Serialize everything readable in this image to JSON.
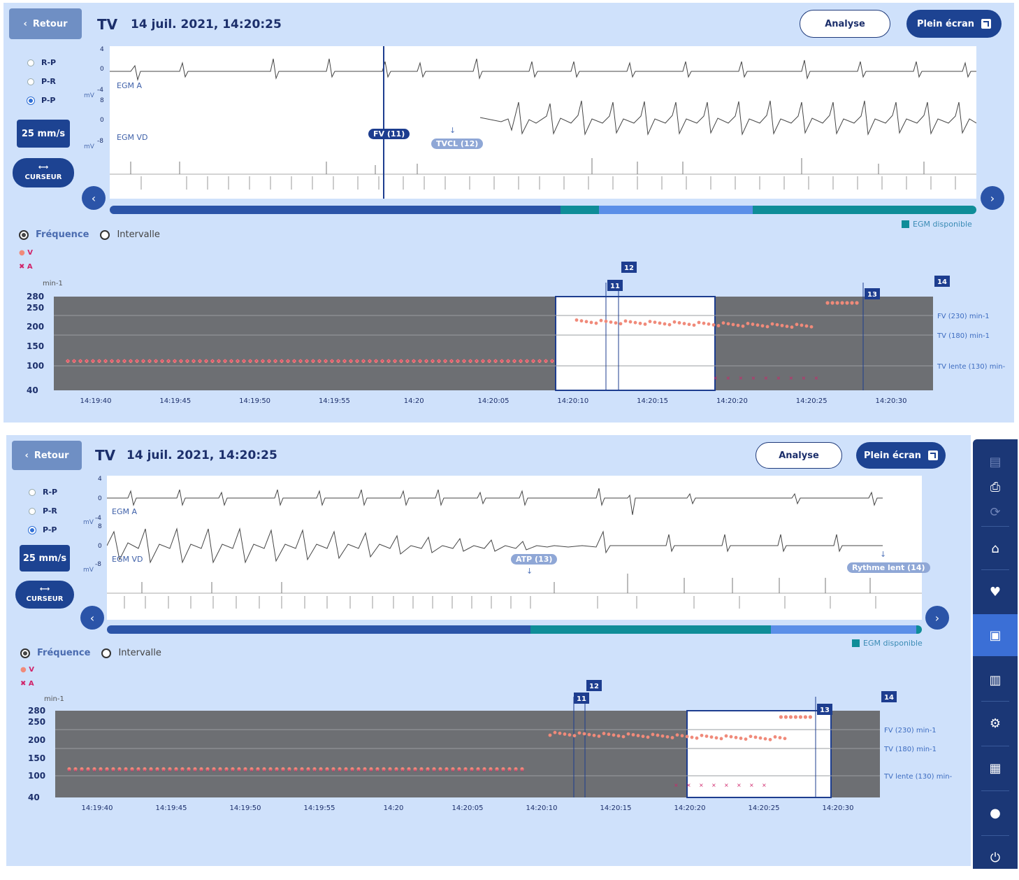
{
  "panels": [
    {
      "back_label": "Retour",
      "episode_type": "TV",
      "datetime": "14 juil. 2021, 14:20:25",
      "analyse_label": "Analyse",
      "fullscreen_label": "Plein écran",
      "interval_options": [
        "R-P",
        "P-R",
        "P-P"
      ],
      "selected_interval": "P-P",
      "speed_label": "25 mm/s",
      "cursor_label": "CURSEUR",
      "egm_channels": [
        "EGM A",
        "EGM VD"
      ],
      "unit_mv": "mV",
      "scale_a": [
        "4",
        "0",
        "-4"
      ],
      "scale_v": [
        "8",
        "0",
        "-8"
      ],
      "markers": [
        {
          "label": "FV (11)",
          "style": "dark"
        },
        {
          "label": "TVCL (12)",
          "style": "light"
        }
      ],
      "egm_available_label": "EGM disponible",
      "mode_freq": "Fréquence",
      "mode_interval": "Intervalle",
      "legend_v": "V",
      "legend_a": "A",
      "unit_rate": "min-1",
      "y_ticks": [
        "280",
        "250",
        "200",
        "150",
        "100",
        "40"
      ],
      "x_ticks": [
        "14:19:40",
        "14:19:45",
        "14:19:50",
        "14:19:55",
        "14:20",
        "14:20:05",
        "14:20:10",
        "14:20:15",
        "14:20:20",
        "14:20:25",
        "14:20:30"
      ],
      "zones": [
        "FV (230) min-1",
        "TV (180) min-1",
        "TV lente (130) min-"
      ],
      "episode_tags": [
        "11",
        "12",
        "13",
        "14"
      ]
    },
    {
      "back_label": "Retour",
      "episode_type": "TV",
      "datetime": "14 juil. 2021, 14:20:25",
      "analyse_label": "Analyse",
      "fullscreen_label": "Plein écran",
      "interval_options": [
        "R-P",
        "P-R",
        "P-P"
      ],
      "selected_interval": "P-P",
      "speed_label": "25 mm/s",
      "cursor_label": "CURSEUR",
      "egm_channels": [
        "EGM A",
        "EGM VD"
      ],
      "unit_mv": "mV",
      "scale_a": [
        "4",
        "0",
        "-4"
      ],
      "scale_v": [
        "8",
        "0",
        "-8"
      ],
      "markers": [
        {
          "label": "ATP (13)",
          "style": "light"
        },
        {
          "label": "Rythme lent (14)",
          "style": "light"
        }
      ],
      "egm_available_label": "EGM disponible",
      "mode_freq": "Fréquence",
      "mode_interval": "Intervalle",
      "legend_v": "V",
      "legend_a": "A",
      "unit_rate": "min-1",
      "y_ticks": [
        "280",
        "250",
        "200",
        "150",
        "100",
        "40"
      ],
      "x_ticks": [
        "14:19:40",
        "14:19:45",
        "14:19:50",
        "14:19:55",
        "14:20",
        "14:20:05",
        "14:20:10",
        "14:20:15",
        "14:20:20",
        "14:20:25",
        "14:20:30"
      ],
      "zones": [
        "FV (230) min-1",
        "TV (180) min-1",
        "TV lente (130) min-"
      ],
      "episode_tags": [
        "11",
        "12",
        "13",
        "14"
      ]
    }
  ],
  "sidebar": {
    "icons": [
      "document-icon",
      "printer-icon",
      "sync-icon",
      "home-icon",
      "heart-icon",
      "episodes-icon",
      "chart-icon",
      "settings-icon",
      "report-icon",
      "user-icon",
      "power-icon"
    ],
    "active": "episodes-icon"
  },
  "colors": {
    "panel_bg": "#cfe1fb",
    "primary": "#1d4392",
    "plot_gray": "#6d6f73",
    "v_marker": "#f08a7a",
    "a_marker": "#d0246a",
    "egm_teal": "#0f8d98"
  }
}
